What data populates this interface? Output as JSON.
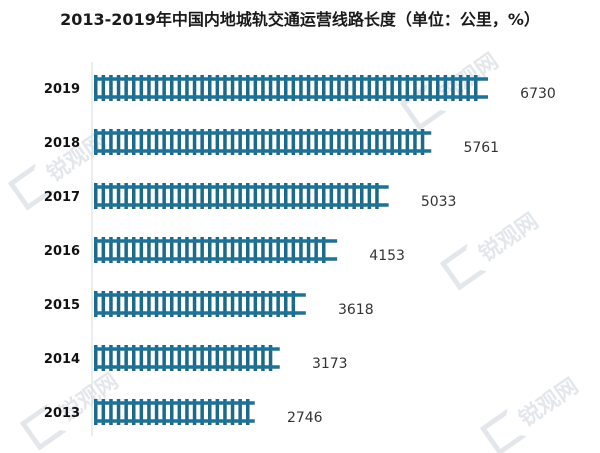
{
  "title": "2013-2019年中国内地城轨交通运营线路长度（单位：公里，%）",
  "watermark": "锐观网",
  "colors": {
    "rail": "#1f7296",
    "sleeper": "#1a6a8c",
    "gap": "#ffffff"
  },
  "chart_data": {
    "type": "bar",
    "orientation": "horizontal",
    "title": "2013-2019年中国内地城轨交通运营线路长度（单位：公里，%）",
    "xlabel": "",
    "ylabel": "",
    "categories": [
      "2019",
      "2018",
      "2017",
      "2016",
      "2015",
      "2014",
      "2013"
    ],
    "values": [
      6730,
      5761,
      5033,
      4153,
      3618,
      3173,
      2746
    ],
    "grid": false,
    "legend": "none"
  }
}
